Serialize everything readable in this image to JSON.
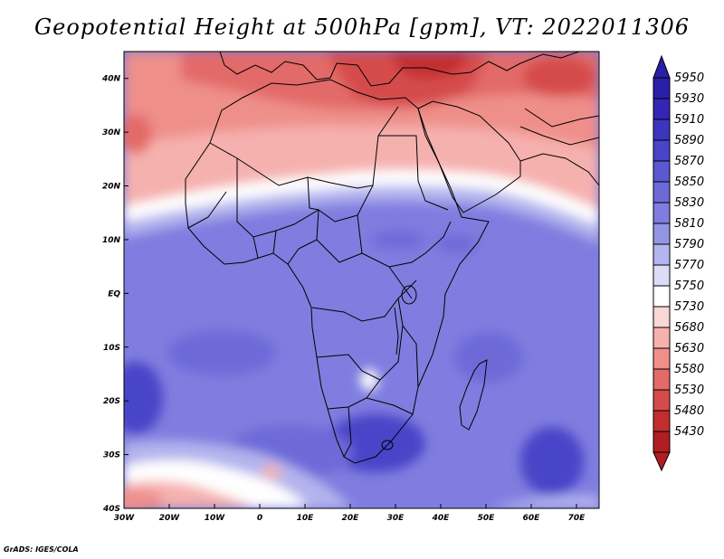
{
  "title": "Geopotential Height at 500hPa [gpm], VT: 2022011306",
  "credit": "GrADS: IGES/COLA",
  "axes": {
    "lat_labels": [
      "40N",
      "30N",
      "20N",
      "10N",
      "EQ",
      "10S",
      "20S",
      "30S",
      "40S"
    ],
    "lon_labels": [
      "30W",
      "20W",
      "10W",
      "0",
      "10E",
      "20E",
      "30E",
      "40E",
      "50E",
      "60E",
      "70E"
    ]
  },
  "colorbar": {
    "levels": [
      "5950",
      "5930",
      "5910",
      "5890",
      "5870",
      "5850",
      "5830",
      "5810",
      "5790",
      "5770",
      "5750",
      "5730",
      "5680",
      "5630",
      "5580",
      "5530",
      "5480",
      "5430"
    ],
    "colors": [
      "#2a1fa8",
      "#3326b4",
      "#3d34c0",
      "#4a44c8",
      "#5c57d2",
      "#6d6ad8",
      "#7f7ddf",
      "#9595e6",
      "#b4b4ee",
      "#dcdcf6",
      "#ffffff",
      "#fbd6d6",
      "#f5b1ae",
      "#ef8f8a",
      "#e26a68",
      "#d54b4b",
      "#c42d30",
      "#b01e22"
    ]
  },
  "chart_data": {
    "type": "heatmap",
    "title": "Geopotential Height at 500hPa [gpm], VT: 2022011306",
    "variable": "Geopotential Height",
    "level": "500hPa",
    "units": "gpm",
    "valid_time": "2022011306",
    "lon_range": [
      -30,
      75
    ],
    "lat_range": [
      -40,
      45
    ],
    "contour_levels": [
      5430,
      5480,
      5530,
      5580,
      5630,
      5680,
      5730,
      5750,
      5770,
      5790,
      5810,
      5830,
      5850,
      5870,
      5890,
      5910,
      5930,
      5950
    ]
  }
}
